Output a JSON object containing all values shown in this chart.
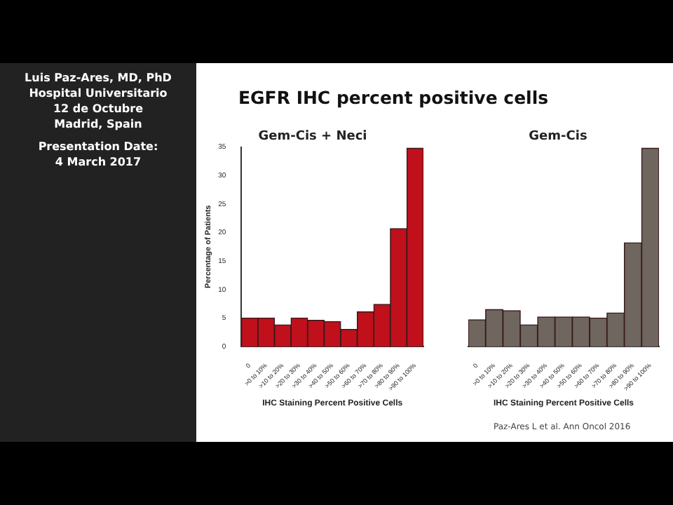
{
  "chart_data": [
    {
      "type": "bar",
      "title": "Gem-Cis + Neci",
      "xlabel": "IHC Staining Percent Positive Cells",
      "ylabel": "Percentage of Patients",
      "categories": [
        "0",
        ">0 to 10%",
        ">10 to 20%",
        ">20 to 30%",
        ">30 to 40%",
        ">40 to 50%",
        ">50 to 60%",
        ">60 to 70%",
        ">70 to 80%",
        ">80 to 90%",
        ">90 to 100%"
      ],
      "values": [
        5,
        5,
        3.8,
        5,
        4.6,
        4.4,
        3,
        6.1,
        7.4,
        20.7,
        34.8
      ],
      "color": "#c0101c",
      "ylim": [
        0,
        35
      ],
      "yticks": [
        0,
        5,
        10,
        15,
        20,
        25,
        30,
        35
      ],
      "grid": false,
      "annotations": [
        "EGFR IHC percent positive cells",
        "Luis Paz-Ares, MD, PhD",
        "Hospital Universitario",
        "12 de Octubre",
        "Madrid, Spain",
        "Presentation Date:",
        "4 March 2017"
      ]
    },
    {
      "type": "bar",
      "title": "Gem-Cis",
      "xlabel": "IHC Staining Percent Positive Cells",
      "categories": [
        "0",
        ">0 to 10%",
        ">10 to 20%",
        ">20 to 30%",
        ">30 to 40%",
        ">40 to 50%",
        ">50 to 60%",
        ">60 to 70%",
        ">70 to 80%",
        ">80 to 90%",
        ">90 to 100%"
      ],
      "values": [
        4.7,
        6.5,
        6.3,
        3.8,
        5.2,
        5.2,
        5.2,
        5,
        5.9,
        18.2,
        34.8
      ],
      "color": "#6e665f",
      "ylim": [
        0,
        35
      ],
      "tick_labels": "x",
      "grid": false,
      "annotations": [
        "Paz-Ares L et al. Ann Oncol 2016"
      ]
    }
  ]
}
